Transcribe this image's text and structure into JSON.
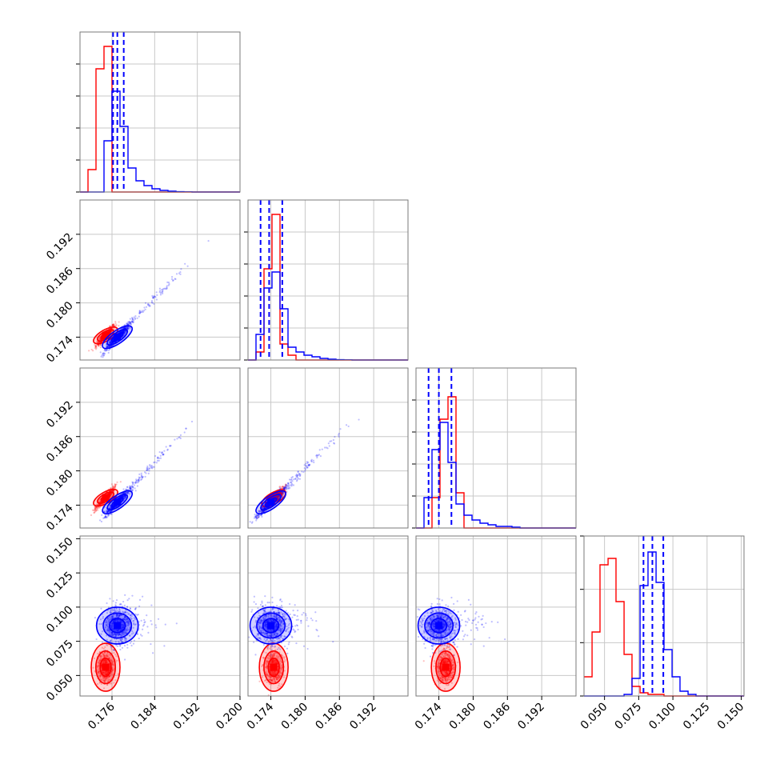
{
  "chart_data": {
    "type": "scatter",
    "title": "",
    "kind": "corner-plot",
    "grid": true,
    "colors": {
      "set_a": "#ff0000",
      "set_b": "#0000ff"
    },
    "series": [
      {
        "color": "#ff0000"
      },
      {
        "color": "#0000ff"
      }
    ],
    "parameters": [
      {
        "lim": [
          0.17,
          0.2
        ],
        "ticks": [
          0.176,
          0.184,
          0.192,
          0.2
        ],
        "tick_labels": [
          "0.176",
          "0.184",
          "0.192",
          "0.200"
        ]
      },
      {
        "lim": [
          0.17,
          0.198
        ],
        "ticks": [
          0.174,
          0.18,
          0.186,
          0.192
        ],
        "tick_labels": [
          "0.174",
          "0.180",
          "0.186",
          "0.192"
        ]
      },
      {
        "lim": [
          0.17,
          0.198
        ],
        "ticks": [
          0.174,
          0.18,
          0.186,
          0.192
        ],
        "tick_labels": [
          "0.174",
          "0.180",
          "0.186",
          "0.192"
        ]
      },
      {
        "lim": [
          0.035,
          0.152
        ],
        "ticks": [
          0.05,
          0.075,
          0.1,
          0.125,
          0.15
        ],
        "tick_labels": [
          "0.050",
          "0.075",
          "0.100",
          "0.125",
          "0.150"
        ]
      }
    ],
    "histograms": [
      {
        "param": 0,
        "bin_edges": [
          0.17,
          0.1715,
          0.173,
          0.1745,
          0.176,
          0.1775,
          0.179,
          0.1805,
          0.182,
          0.1835,
          0.185,
          0.1865,
          0.188,
          0.1895,
          0.191,
          0.1925,
          0.194,
          0.1955,
          0.197,
          0.1985,
          0.2
        ],
        "red": [
          0.0,
          0.14,
          0.77,
          0.91,
          0.0,
          0.0,
          0.0,
          0.0,
          0.0,
          0.0,
          0.0,
          0.0,
          0.0,
          0.0,
          0.0,
          0.0,
          0.0,
          0.0,
          0.0,
          0.0
        ],
        "blue": [
          0.0,
          0.0,
          0.0,
          0.32,
          0.63,
          0.41,
          0.15,
          0.07,
          0.04,
          0.02,
          0.01,
          0.005,
          0.002,
          0.001,
          0.0,
          0.0,
          0.0,
          0.0,
          0.0,
          0.0
        ],
        "quantiles_blue": [
          0.1762,
          0.177,
          0.1782
        ]
      },
      {
        "param": 1,
        "bin_edges": [
          0.17,
          0.1714,
          0.1728,
          0.1742,
          0.1756,
          0.177,
          0.1784,
          0.1798,
          0.1812,
          0.1826,
          0.184,
          0.1854,
          0.1868,
          0.1882,
          0.1896,
          0.191,
          0.1924,
          0.1938,
          0.1952,
          0.1966,
          0.198
        ],
        "red": [
          0.0,
          0.05,
          0.57,
          0.91,
          0.1,
          0.03,
          0.0,
          0.0,
          0.0,
          0.0,
          0.0,
          0.0,
          0.0,
          0.0,
          0.0,
          0.0,
          0.0,
          0.0,
          0.0,
          0.0
        ],
        "blue": [
          0.0,
          0.16,
          0.45,
          0.55,
          0.32,
          0.08,
          0.05,
          0.03,
          0.02,
          0.01,
          0.005,
          0.002,
          0.001,
          0.0,
          0.0,
          0.0,
          0.0,
          0.0,
          0.0,
          0.0
        ],
        "quantiles_blue": [
          0.1722,
          0.1737,
          0.176
        ]
      },
      {
        "param": 2,
        "bin_edges": [
          0.17,
          0.1714,
          0.1728,
          0.1742,
          0.1756,
          0.177,
          0.1784,
          0.1798,
          0.1812,
          0.1826,
          0.184,
          0.1854,
          0.1868,
          0.1882,
          0.1896,
          0.191,
          0.1924,
          0.1938,
          0.1952,
          0.1966,
          0.198
        ],
        "red": [
          0.0,
          0.0,
          0.19,
          0.68,
          0.82,
          0.22,
          0.0,
          0.0,
          0.0,
          0.0,
          0.0,
          0.0,
          0.0,
          0.0,
          0.0,
          0.0,
          0.0,
          0.0,
          0.0,
          0.0
        ],
        "blue": [
          0.0,
          0.19,
          0.49,
          0.66,
          0.41,
          0.15,
          0.08,
          0.05,
          0.03,
          0.02,
          0.01,
          0.01,
          0.005,
          0.0,
          0.0,
          0.0,
          0.0,
          0.0,
          0.0,
          0.0
        ],
        "quantiles_blue": [
          0.1722,
          0.174,
          0.1762
        ]
      },
      {
        "param": 3,
        "bin_edges": [
          0.035,
          0.0409,
          0.0467,
          0.0526,
          0.0584,
          0.0643,
          0.0701,
          0.076,
          0.0818,
          0.0877,
          0.0935,
          0.0994,
          0.1052,
          0.1111,
          0.1169,
          0.1228,
          0.1286,
          0.1345,
          0.1403,
          0.1462,
          0.152
        ],
        "red": [
          0.12,
          0.4,
          0.82,
          0.86,
          0.59,
          0.26,
          0.06,
          0.02,
          0.01,
          0.01,
          0.0,
          0.0,
          0.0,
          0.0,
          0.0,
          0.0,
          0.0,
          0.0,
          0.0,
          0.0
        ],
        "blue": [
          0.0,
          0.0,
          0.0,
          0.0,
          0.0,
          0.01,
          0.11,
          0.69,
          0.9,
          0.71,
          0.29,
          0.12,
          0.03,
          0.01,
          0.0,
          0.0,
          0.0,
          0.0,
          0.0,
          0.0
        ],
        "quantiles_blue": [
          0.0785,
          0.085,
          0.093
        ]
      }
    ],
    "scatter_panels": [
      {
        "x_param": 0,
        "y_param": 1,
        "red_center": [
          0.1748,
          0.1743
        ],
        "blue_center": [
          0.177,
          0.174
        ]
      },
      {
        "x_param": 0,
        "y_param": 2,
        "red_center": [
          0.1748,
          0.1753
        ],
        "blue_center": [
          0.177,
          0.1745
        ]
      },
      {
        "x_param": 1,
        "y_param": 2,
        "red_center": [
          0.1745,
          0.1752
        ],
        "blue_center": [
          0.174,
          0.1745
        ]
      },
      {
        "x_param": 0,
        "y_param": 3,
        "red_center": [
          0.1748,
          0.056
        ],
        "blue_center": [
          0.177,
          0.0865
        ]
      },
      {
        "x_param": 1,
        "y_param": 3,
        "red_center": [
          0.1745,
          0.056
        ],
        "blue_center": [
          0.174,
          0.0865
        ]
      },
      {
        "x_param": 2,
        "y_param": 3,
        "red_center": [
          0.1752,
          0.056
        ],
        "blue_center": [
          0.174,
          0.0865
        ]
      }
    ]
  }
}
